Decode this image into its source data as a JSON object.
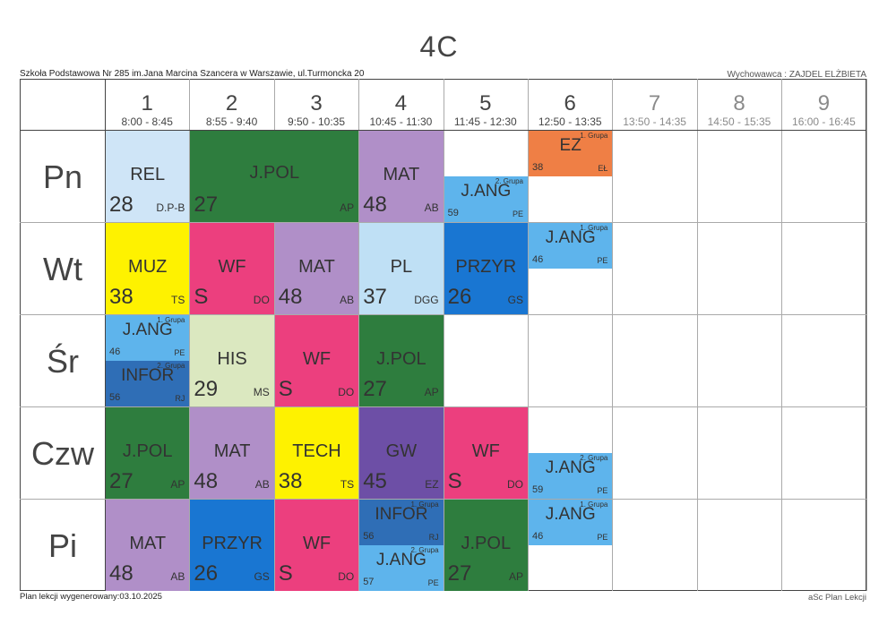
{
  "header": {
    "class_name": "4C",
    "school": "Szkoła Podstawowa Nr 285 im.Jana Marcina Szancera w Warszawie, ul.Turmoncka 20",
    "homeroom_teacher": "Wychowawca : ZAJDEL ELŻBIETA"
  },
  "periods": [
    {
      "num": "1",
      "time": "8:00 - 8:45"
    },
    {
      "num": "2",
      "time": "8:55 - 9:40"
    },
    {
      "num": "3",
      "time": "9:50 - 10:35"
    },
    {
      "num": "4",
      "time": "10:45 - 11:30"
    },
    {
      "num": "5",
      "time": "11:45 - 12:30"
    },
    {
      "num": "6",
      "time": "12:50 - 13:35"
    },
    {
      "num": "7",
      "time": "13:50 - 14:35"
    },
    {
      "num": "8",
      "time": "14:50 - 15:35"
    },
    {
      "num": "9",
      "time": "16:00 - 16:45"
    }
  ],
  "days": [
    "Pn",
    "Wt",
    "Śr",
    "Czw",
    "Pi"
  ],
  "colors": {
    "light_blue": "#cfe5f7",
    "dark_green": "#2e7d3e",
    "purple": "#b08fc8",
    "orange": "#ef7f45",
    "sky_blue": "#5eb4ec",
    "yellow": "#fef200",
    "pink": "#ec3f7e",
    "pale_blue": "#bfe0f5",
    "blue": "#1976d2",
    "pale_green": "#dbe8c0",
    "steel_blue": "#2f6eb6",
    "violet": "#6d4fa6"
  },
  "lessons": [
    {
      "day": 0,
      "period": 0,
      "span": 1,
      "part": "full",
      "subject": "REL",
      "room": "28",
      "teacher": "D.P-B",
      "group": "",
      "color": "light_blue"
    },
    {
      "day": 0,
      "period": 1,
      "span": 2,
      "part": "full",
      "subject": "J.POL",
      "room": "27",
      "teacher": "AP",
      "group": "",
      "color": "dark_green"
    },
    {
      "day": 0,
      "period": 3,
      "span": 1,
      "part": "full",
      "subject": "MAT",
      "room": "48",
      "teacher": "AB",
      "group": "",
      "color": "purple"
    },
    {
      "day": 0,
      "period": 4,
      "span": 1,
      "part": "bottom",
      "subject": "J.ANG",
      "room": "59",
      "teacher": "PE",
      "group": "2. Grupa",
      "color": "sky_blue"
    },
    {
      "day": 0,
      "period": 5,
      "span": 1,
      "part": "top",
      "subject": "EZ",
      "room": "38",
      "teacher": "EŁ",
      "group": "1. Grupa",
      "color": "orange"
    },
    {
      "day": 1,
      "period": 0,
      "span": 1,
      "part": "full",
      "subject": "MUZ",
      "room": "38",
      "teacher": "TS",
      "group": "",
      "color": "yellow"
    },
    {
      "day": 1,
      "period": 1,
      "span": 1,
      "part": "full",
      "subject": "WF",
      "room": "S",
      "teacher": "DO",
      "group": "",
      "color": "pink"
    },
    {
      "day": 1,
      "period": 2,
      "span": 1,
      "part": "full",
      "subject": "MAT",
      "room": "48",
      "teacher": "AB",
      "group": "",
      "color": "purple"
    },
    {
      "day": 1,
      "period": 3,
      "span": 1,
      "part": "full",
      "subject": "PL",
      "room": "37",
      "teacher": "DGG",
      "group": "",
      "color": "pale_blue"
    },
    {
      "day": 1,
      "period": 4,
      "span": 1,
      "part": "full",
      "subject": "PRZYR",
      "room": "26",
      "teacher": "GS",
      "group": "",
      "color": "blue"
    },
    {
      "day": 1,
      "period": 5,
      "span": 1,
      "part": "top",
      "subject": "J.ANG",
      "room": "46",
      "teacher": "PE",
      "group": "1. Grupa",
      "color": "sky_blue"
    },
    {
      "day": 2,
      "period": 0,
      "span": 1,
      "part": "top",
      "subject": "J.ANG",
      "room": "46",
      "teacher": "PE",
      "group": "1. Grupa",
      "color": "sky_blue"
    },
    {
      "day": 2,
      "period": 0,
      "span": 1,
      "part": "bottom",
      "subject": "INFOR",
      "room": "56",
      "teacher": "RJ",
      "group": "2. Grupa",
      "color": "steel_blue"
    },
    {
      "day": 2,
      "period": 1,
      "span": 1,
      "part": "full",
      "subject": "HIS",
      "room": "29",
      "teacher": "MS",
      "group": "",
      "color": "pale_green"
    },
    {
      "day": 2,
      "period": 2,
      "span": 1,
      "part": "full",
      "subject": "WF",
      "room": "S",
      "teacher": "DO",
      "group": "",
      "color": "pink"
    },
    {
      "day": 2,
      "period": 3,
      "span": 1,
      "part": "full",
      "subject": "J.POL",
      "room": "27",
      "teacher": "AP",
      "group": "",
      "color": "dark_green"
    },
    {
      "day": 3,
      "period": 0,
      "span": 1,
      "part": "full",
      "subject": "J.POL",
      "room": "27",
      "teacher": "AP",
      "group": "",
      "color": "dark_green"
    },
    {
      "day": 3,
      "period": 1,
      "span": 1,
      "part": "full",
      "subject": "MAT",
      "room": "48",
      "teacher": "AB",
      "group": "",
      "color": "purple"
    },
    {
      "day": 3,
      "period": 2,
      "span": 1,
      "part": "full",
      "subject": "TECH",
      "room": "38",
      "teacher": "TS",
      "group": "",
      "color": "yellow"
    },
    {
      "day": 3,
      "period": 3,
      "span": 1,
      "part": "full",
      "subject": "GW",
      "room": "45",
      "teacher": "EZ",
      "group": "",
      "color": "violet"
    },
    {
      "day": 3,
      "period": 4,
      "span": 1,
      "part": "full",
      "subject": "WF",
      "room": "S",
      "teacher": "DO",
      "group": "",
      "color": "pink"
    },
    {
      "day": 3,
      "period": 5,
      "span": 1,
      "part": "bottom",
      "subject": "J.ANG",
      "room": "59",
      "teacher": "PE",
      "group": "2. Grupa",
      "color": "sky_blue"
    },
    {
      "day": 4,
      "period": 0,
      "span": 1,
      "part": "full",
      "subject": "MAT",
      "room": "48",
      "teacher": "AB",
      "group": "",
      "color": "purple"
    },
    {
      "day": 4,
      "period": 1,
      "span": 1,
      "part": "full",
      "subject": "PRZYR",
      "room": "26",
      "teacher": "GS",
      "group": "",
      "color": "blue"
    },
    {
      "day": 4,
      "period": 2,
      "span": 1,
      "part": "full",
      "subject": "WF",
      "room": "S",
      "teacher": "DO",
      "group": "",
      "color": "pink"
    },
    {
      "day": 4,
      "period": 3,
      "span": 1,
      "part": "top",
      "subject": "INFOR",
      "room": "56",
      "teacher": "RJ",
      "group": "1. Grupa",
      "color": "steel_blue"
    },
    {
      "day": 4,
      "period": 3,
      "span": 1,
      "part": "bottom",
      "subject": "J.ANG",
      "room": "57",
      "teacher": "PE",
      "group": "2. Grupa",
      "color": "sky_blue"
    },
    {
      "day": 4,
      "period": 4,
      "span": 1,
      "part": "full",
      "subject": "J.POL",
      "room": "27",
      "teacher": "AP",
      "group": "",
      "color": "dark_green"
    },
    {
      "day": 4,
      "period": 5,
      "span": 1,
      "part": "top",
      "subject": "J.ANG",
      "room": "46",
      "teacher": "PE",
      "group": "1. Grupa",
      "color": "sky_blue"
    }
  ],
  "footer": {
    "generated": "Plan lekcji wygenerowany:03.10.2025",
    "software": "aSc Plan Lekcji"
  }
}
